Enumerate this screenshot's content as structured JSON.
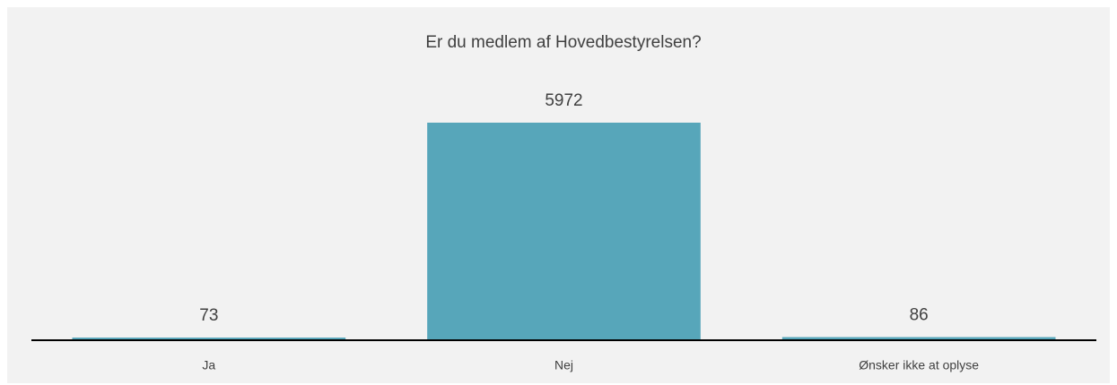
{
  "chart_data": {
    "type": "bar",
    "title": "Er du medlem af Hovedbestyrelsen?",
    "categories": [
      "Ja",
      "Nej",
      "Ønsker ikke at oplyse"
    ],
    "values": [
      73,
      5972,
      86
    ],
    "color": "#57a6ba"
  }
}
